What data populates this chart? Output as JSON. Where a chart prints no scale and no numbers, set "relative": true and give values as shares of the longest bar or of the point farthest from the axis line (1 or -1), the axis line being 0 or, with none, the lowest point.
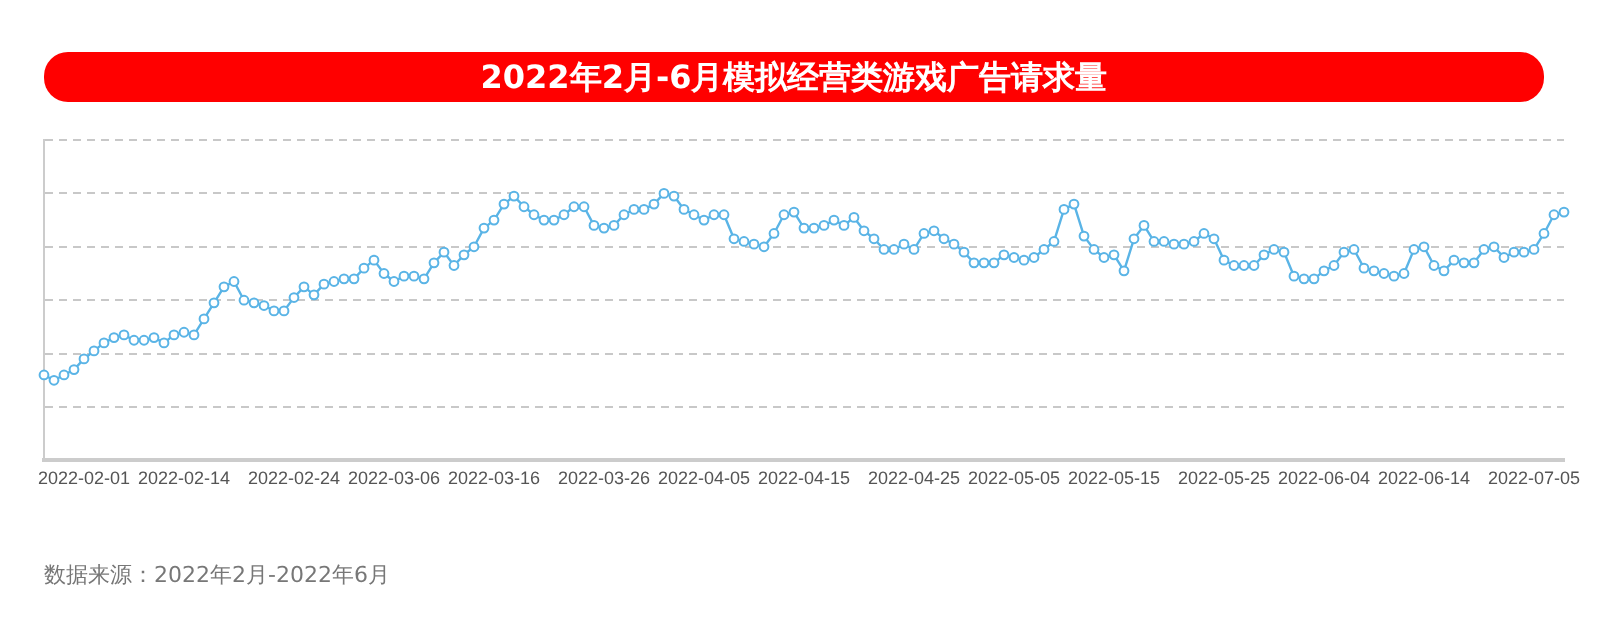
{
  "chart_data": {
    "type": "line",
    "title": "2022年2月-6月模拟经营类游戏广告请求量",
    "relative": true,
    "grid": "y",
    "legend": false,
    "marker": "circle",
    "line_style": "solid",
    "tick_labels": "x",
    "categories": [
      null,
      null,
      null,
      null,
      "2022-02-01",
      null,
      null,
      null,
      null,
      null,
      null,
      null,
      null,
      null,
      "2022-02-14",
      null,
      null,
      null,
      null,
      null,
      null,
      null,
      null,
      null,
      null,
      "2022-02-24",
      null,
      null,
      null,
      null,
      null,
      null,
      null,
      null,
      null,
      "2022-03-06",
      null,
      null,
      null,
      null,
      null,
      null,
      null,
      null,
      null,
      "2022-03-16",
      null,
      null,
      null,
      null,
      null,
      null,
      null,
      null,
      null,
      null,
      "2022-03-26",
      null,
      null,
      null,
      null,
      null,
      null,
      null,
      null,
      null,
      "2022-04-05",
      null,
      null,
      null,
      null,
      null,
      null,
      null,
      null,
      null,
      "2022-04-15",
      null,
      null,
      null,
      null,
      null,
      null,
      null,
      null,
      null,
      null,
      "2022-04-25",
      null,
      null,
      null,
      null,
      null,
      null,
      null,
      null,
      null,
      "2022-05-05",
      null,
      null,
      null,
      null,
      null,
      null,
      null,
      null,
      null,
      "2022-05-15",
      null,
      null,
      null,
      null,
      null,
      null,
      null,
      null,
      null,
      null,
      "2022-05-25",
      null,
      null,
      null,
      null,
      null,
      null,
      null,
      null,
      null,
      "2022-06-04",
      null,
      null,
      null,
      null,
      null,
      null,
      null,
      null,
      null,
      "2022-06-14",
      null,
      null,
      null,
      null,
      null,
      null,
      null,
      null,
      null,
      null,
      "2022-07-05",
      null,
      null,
      null
    ],
    "series": [
      {
        "color": "#5ab4e6",
        "values": [
          0.32,
          0.3,
          0.32,
          0.34,
          0.38,
          0.41,
          0.44,
          0.46,
          0.47,
          0.45,
          0.45,
          0.46,
          0.44,
          0.47,
          0.48,
          0.47,
          0.53,
          0.59,
          0.65,
          0.67,
          0.6,
          0.59,
          0.58,
          0.56,
          0.56,
          0.61,
          0.65,
          0.62,
          0.66,
          0.67,
          0.68,
          0.68,
          0.72,
          0.75,
          0.7,
          0.67,
          0.69,
          0.69,
          0.68,
          0.74,
          0.78,
          0.73,
          0.77,
          0.8,
          0.87,
          0.9,
          0.96,
          0.99,
          0.95,
          0.92,
          0.9,
          0.9,
          0.92,
          0.95,
          0.95,
          0.88,
          0.87,
          0.88,
          0.92,
          0.94,
          0.94,
          0.96,
          1,
          0.99,
          0.94,
          0.92,
          0.9,
          0.92,
          0.92,
          0.83,
          0.82,
          0.81,
          0.8,
          0.85,
          0.92,
          0.93,
          0.87,
          0.87,
          0.88,
          0.9,
          0.88,
          0.91,
          0.86,
          0.83,
          0.79,
          0.79,
          0.81,
          0.79,
          0.85,
          0.86,
          0.83,
          0.81,
          0.78,
          0.74,
          0.74,
          0.74,
          0.77,
          0.76,
          0.75,
          0.76,
          0.79,
          0.82,
          0.94,
          0.96,
          0.84,
          0.79,
          0.76,
          0.77,
          0.71,
          0.83,
          0.88,
          0.82,
          0.82,
          0.81,
          0.81,
          0.82,
          0.85,
          0.83,
          0.75,
          0.73,
          0.73,
          0.73,
          0.77,
          0.79,
          0.78,
          0.69,
          0.68,
          0.68,
          0.71,
          0.73,
          0.78,
          0.79,
          0.72,
          0.71,
          0.7,
          0.69,
          0.7,
          0.79,
          0.8,
          0.73,
          0.71,
          0.75,
          0.74,
          0.74,
          0.79,
          0.8,
          0.76,
          0.78,
          0.78,
          0.79,
          0.85,
          0.92,
          0.93
        ]
      }
    ],
    "annotations": [
      "数据来源：2022年2月-2022年6月"
    ]
  }
}
